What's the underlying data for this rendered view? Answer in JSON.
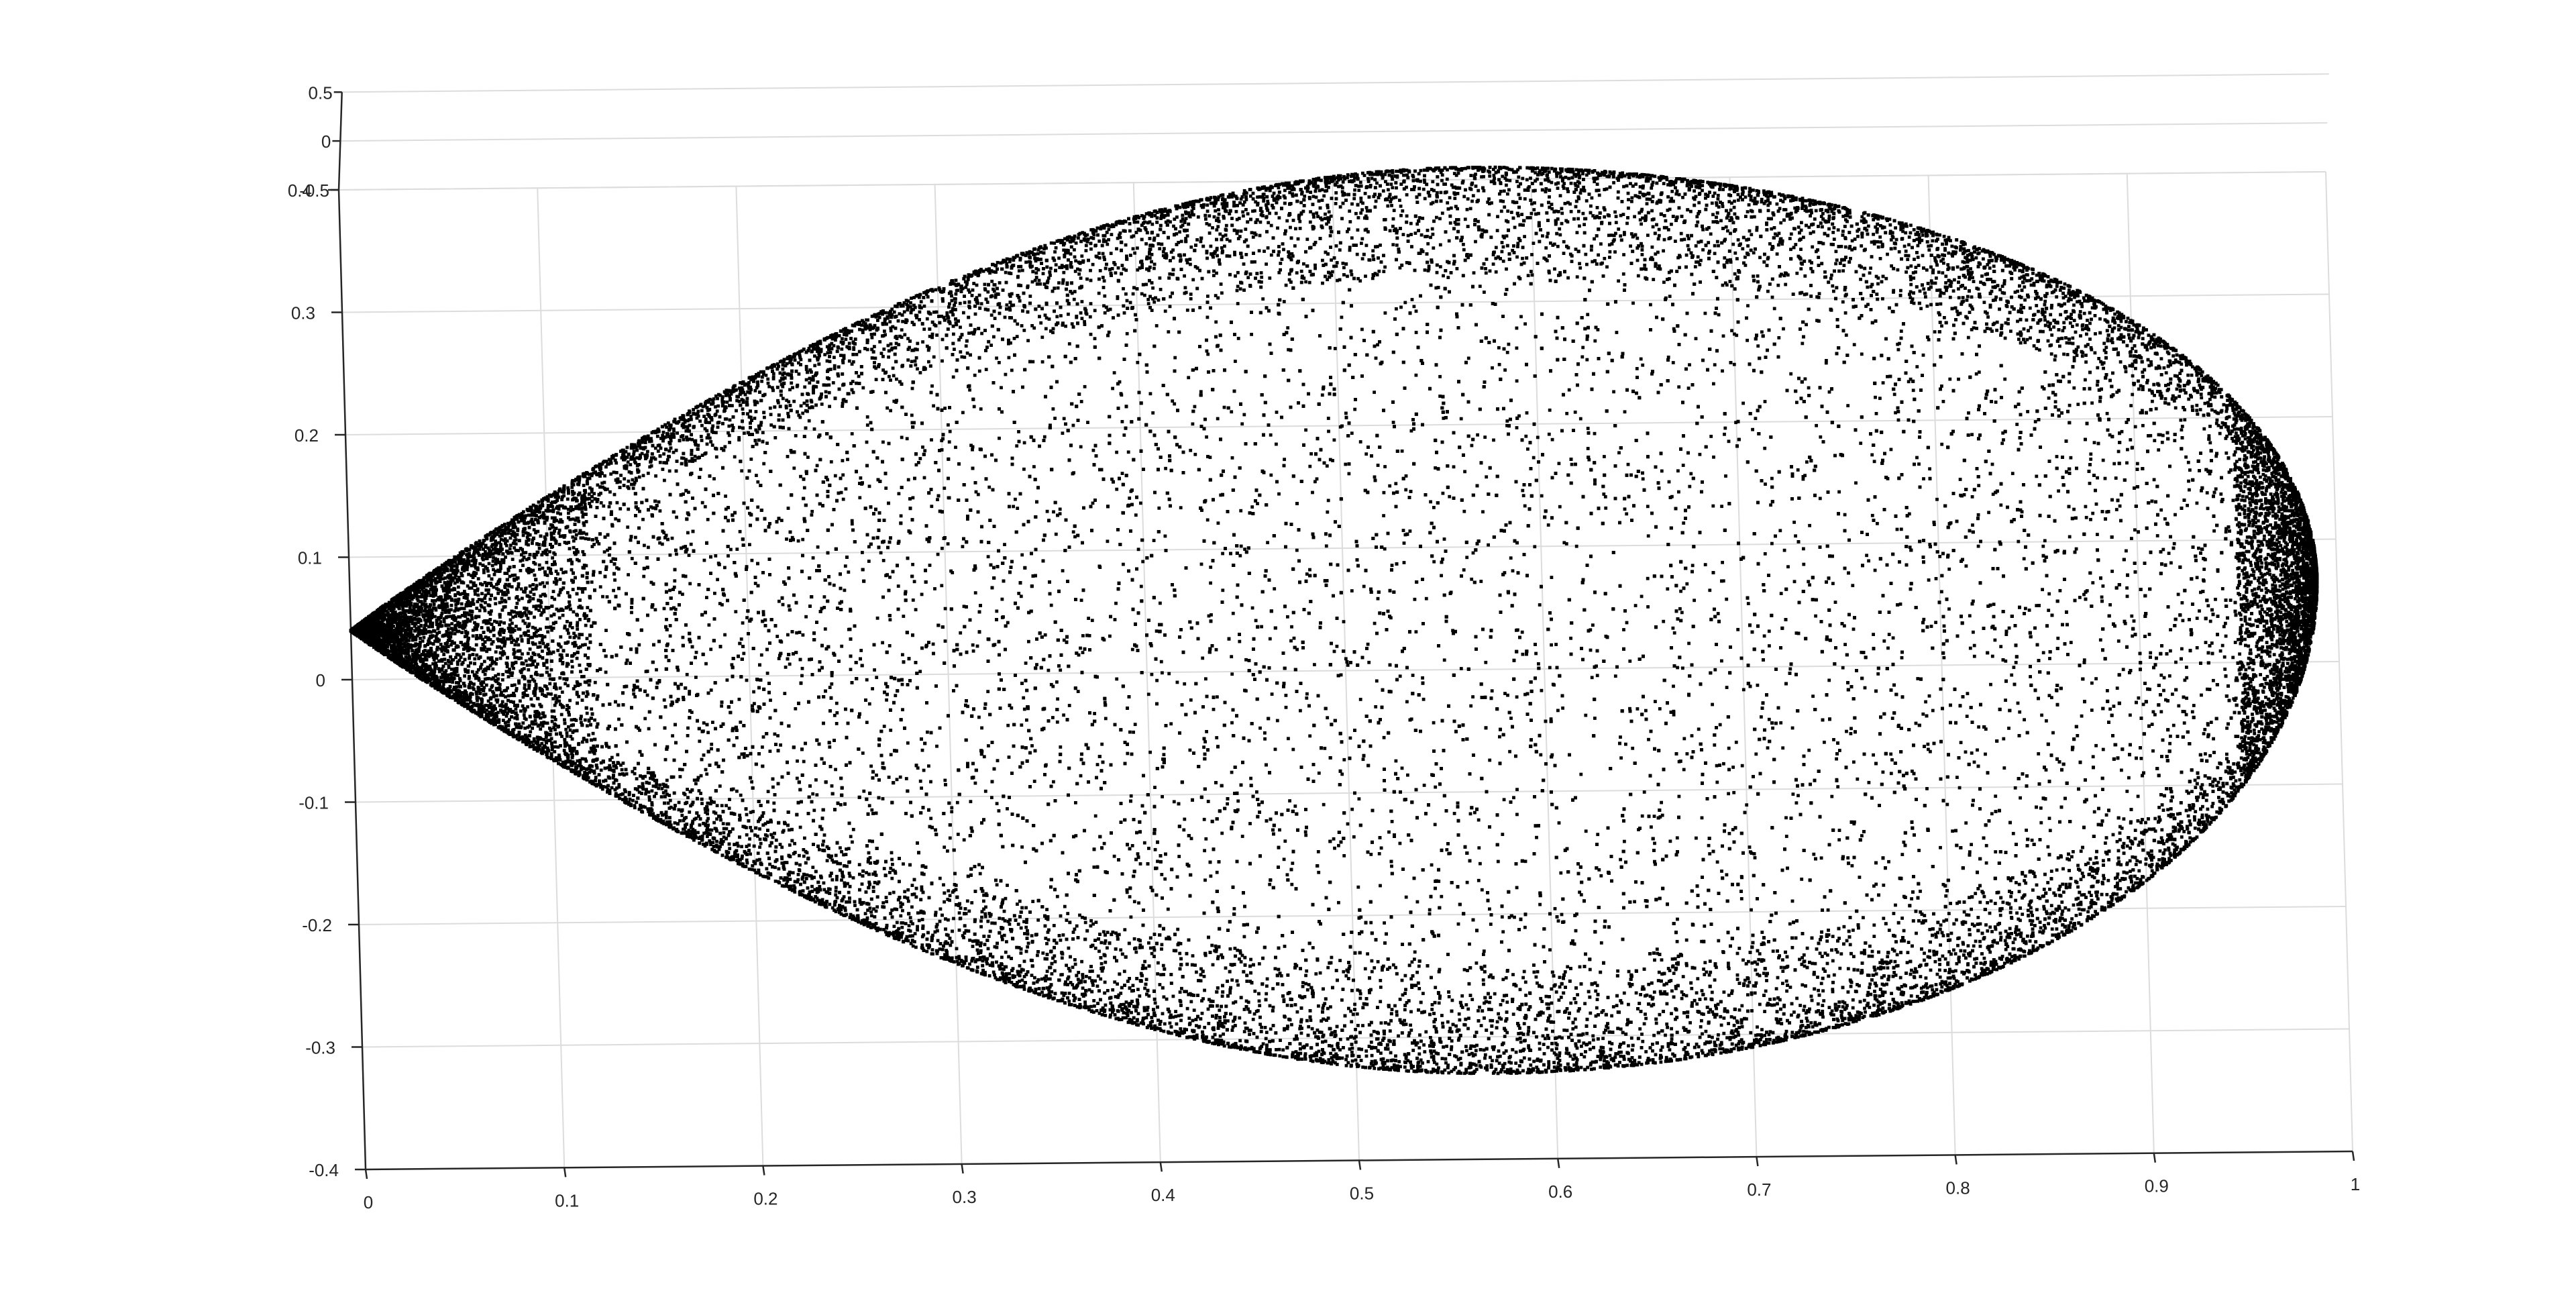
{
  "chart_data": {
    "type": "scatter",
    "view": "3d",
    "title": "",
    "xlabel": "",
    "ylabel": "",
    "zlabel": "",
    "grid": true,
    "marker_color": "#000000",
    "axis_color": "#262626",
    "grid_color": "#dcdcdc",
    "xlim": [
      0,
      1
    ],
    "ylim": [
      -0.4,
      0.4
    ],
    "zlim": [
      -0.5,
      0.5
    ],
    "x_ticks": [
      0,
      0.1,
      0.2,
      0.3,
      0.4,
      0.5,
      0.6,
      0.7,
      0.8,
      0.9,
      1
    ],
    "y_ticks": [
      -0.4,
      -0.3,
      -0.2,
      -0.1,
      0,
      0.1,
      0.2,
      0.3,
      0.4
    ],
    "z_ticks": [
      -0.5,
      0,
      0.5
    ],
    "x_tick_labels": [
      "0",
      "0.1",
      "0.2",
      "0.3",
      "0.4",
      "0.5",
      "0.6",
      "0.7",
      "0.8",
      "0.9",
      "1"
    ],
    "y_tick_labels": [
      "-0.4",
      "-0.3",
      "-0.2",
      "-0.1",
      "0",
      "0.1",
      "0.2",
      "0.3",
      "0.4"
    ],
    "z_tick_labels": [
      "-0.5",
      "0",
      "0.5"
    ],
    "point_cloud": {
      "shape": "teardrop region (convex cusp at left, rounded at right)",
      "x_range": [
        0,
        0.99
      ],
      "y_range": [
        -0.33,
        0.41
      ],
      "z_value": 0,
      "cusp": [
        0,
        0.04
      ],
      "max_width_at_x": 0.57,
      "upper_edge_y_at_widest": 0.41,
      "lower_edge_y_at_widest": -0.33,
      "right_tip": [
        0.99,
        0.07
      ],
      "density": "dense, edge-concentrated"
    }
  }
}
